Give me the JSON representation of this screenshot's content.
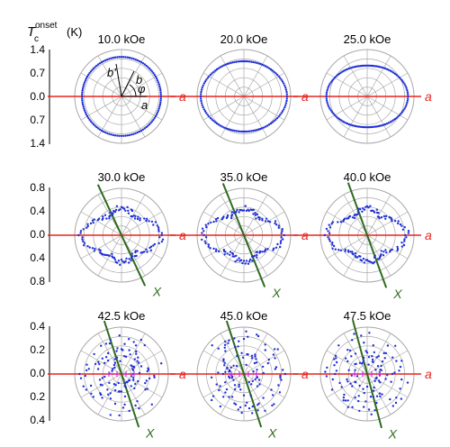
{
  "figure": {
    "y_label_main": "T",
    "y_label_sub": "c",
    "y_label_sup": "onset",
    "y_label_unit": "(K)",
    "axis_label_a": "a",
    "axis_label_x": "X",
    "vec_labels": {
      "a": "a",
      "b": "b",
      "b_prime": "b'",
      "phi": "φ"
    },
    "colors": {
      "data": "#1f2fd6",
      "a_axis": "#e8231f",
      "x_axis": "#2e6a1e",
      "grid": "#a8a8a8",
      "magenta": "#d22bd2"
    }
  },
  "rows": [
    {
      "ticks": [
        "1.4",
        "0.7",
        "0.0",
        "0.7",
        "1.4"
      ]
    },
    {
      "ticks": [
        "0.8",
        "0.4",
        "0.0",
        "0.4",
        "0.8"
      ]
    },
    {
      "ticks": [
        "0.4",
        "0.2",
        "0.0",
        "0.2",
        "0.4"
      ]
    }
  ],
  "chart_data": [
    {
      "type": "polar-scatter",
      "title": "10.0 kOe",
      "rmax": 1.4,
      "radial_profile": "circle",
      "radius": 1.18,
      "ticks": [
        1.4,
        0.7,
        0.0,
        0.7,
        1.4
      ]
    },
    {
      "type": "polar-scatter",
      "title": "20.0 kOe",
      "rmax": 1.4,
      "radial_profile": "two-fold",
      "radius_along_a": 1.22,
      "radius_perp_a": 1.05,
      "ticks": [
        1.4,
        0.7,
        0.0,
        0.7,
        1.4
      ]
    },
    {
      "type": "polar-scatter",
      "title": "25.0 kOe",
      "rmax": 1.4,
      "radial_profile": "two-fold",
      "radius_along_a": 1.15,
      "radius_perp_a": 0.92,
      "ticks": [
        1.4,
        0.7,
        0.0,
        0.7,
        1.4
      ]
    },
    {
      "type": "polar-scatter",
      "title": "30.0 kOe",
      "rmax": 0.8,
      "radial_profile": "lobed",
      "x_axis_angle_deg": -65,
      "ticks": [
        0.8,
        0.4,
        0.0,
        0.4,
        0.8
      ]
    },
    {
      "type": "polar-scatter",
      "title": "35.0 kOe",
      "rmax": 0.8,
      "radial_profile": "lobed",
      "x_axis_angle_deg": -68,
      "ticks": [
        0.8,
        0.4,
        0.0,
        0.4,
        0.8
      ]
    },
    {
      "type": "polar-scatter",
      "title": "40.0 kOe",
      "rmax": 0.8,
      "radial_profile": "lobed",
      "x_axis_angle_deg": -70,
      "ticks": [
        0.8,
        0.4,
        0.0,
        0.4,
        0.8
      ]
    },
    {
      "type": "polar-scatter",
      "title": "42.5 kOe",
      "rmax": 0.4,
      "radial_profile": "scattered",
      "x_axis_angle_deg": -72,
      "ticks": [
        0.4,
        0.2,
        0.0,
        0.2,
        0.4
      ]
    },
    {
      "type": "polar-scatter",
      "title": "45.0 kOe",
      "rmax": 0.4,
      "radial_profile": "scattered",
      "x_axis_angle_deg": -72,
      "ticks": [
        0.4,
        0.2,
        0.0,
        0.2,
        0.4
      ]
    },
    {
      "type": "polar-scatter",
      "title": "47.5 kOe",
      "rmax": 0.4,
      "radial_profile": "scattered",
      "x_axis_angle_deg": -75,
      "ticks": [
        0.4,
        0.2,
        0.0,
        0.2,
        0.4
      ]
    }
  ]
}
